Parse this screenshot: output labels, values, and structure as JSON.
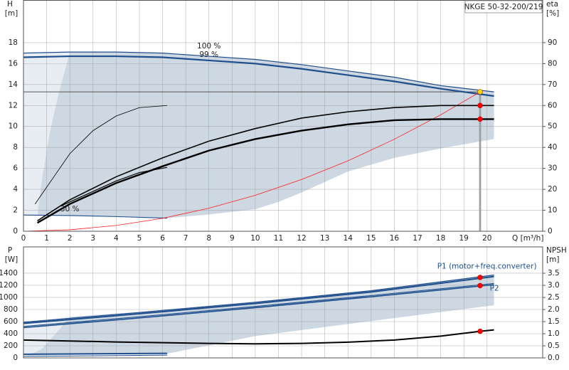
{
  "chart_data": [
    {
      "type": "line",
      "title": "NKGE 50-32-200/219",
      "y_label": "H",
      "y_unit": "[m]",
      "y2_label": "eta",
      "y2_unit": "[%]",
      "x_label": "Q [m³/h]",
      "xlim": [
        0,
        22.4
      ],
      "xticks": [
        0,
        1,
        2,
        3,
        4,
        5,
        6,
        7,
        8,
        9,
        10,
        11,
        12,
        13,
        14,
        15,
        16,
        17,
        18,
        19,
        20
      ],
      "ylim": [
        0,
        22
      ],
      "yticks": [
        0,
        2,
        4,
        6,
        8,
        10,
        12,
        14,
        16,
        18
      ],
      "y2lim": [
        0,
        110
      ],
      "y2ticks": [
        0,
        10,
        20,
        30,
        40,
        50,
        60,
        70,
        80,
        90
      ],
      "grid": true,
      "regions": [
        {
          "color": "#e7edf3",
          "x": [
            0,
            0,
            2,
            1.5,
            1.1,
            0.8,
            0.6
          ],
          "values": [
            1.55,
            17.0,
            17.1,
            13,
            9,
            5,
            1.5
          ]
        },
        {
          "color": "#cdd8e3",
          "x": [
            0.6,
            0.8,
            1.1,
            1.5,
            2,
            4,
            6,
            8,
            10,
            12,
            14,
            16,
            18,
            20.3,
            20.3,
            18,
            16,
            14,
            12,
            11,
            10,
            8,
            6.2,
            4,
            2,
            0.6
          ],
          "values": [
            1.5,
            5,
            9,
            13,
            17.1,
            17.1,
            17.0,
            16.7,
            16.4,
            15.9,
            15.3,
            14.7,
            13.9,
            13.3,
            8.8,
            7.9,
            7.0,
            5.7,
            3.7,
            2.8,
            2.1,
            1.6,
            1.25,
            1.4,
            1.5,
            1.5
          ]
        }
      ],
      "series": [
        {
          "name": "100 %",
          "color": "#1f4e8c",
          "width": 1.2,
          "x": [
            0,
            2,
            4,
            6,
            8,
            10,
            12,
            14,
            16,
            18,
            20.3
          ],
          "values": [
            17.0,
            17.1,
            17.1,
            17.0,
            16.7,
            16.4,
            15.9,
            15.3,
            14.7,
            13.9,
            13.3
          ]
        },
        {
          "name": "99 %",
          "color": "#1f4e8c",
          "width": 2.2,
          "x": [
            0,
            2,
            4,
            6,
            8,
            10,
            12,
            14,
            16,
            18,
            20.3
          ],
          "values": [
            16.6,
            16.7,
            16.7,
            16.6,
            16.3,
            16.0,
            15.5,
            14.9,
            14.3,
            13.6,
            12.9
          ]
        },
        {
          "name": "30 %",
          "color": "#1f4e8c",
          "width": 1.1,
          "x": [
            0,
            2,
            4,
            6.2
          ],
          "values": [
            1.55,
            1.5,
            1.4,
            1.25
          ]
        },
        {
          "color": "#ff2020",
          "width": 0.8,
          "x": [
            0,
            2,
            4,
            6,
            8,
            10,
            12,
            14,
            16,
            18,
            19.7
          ],
          "values": [
            0,
            0.14,
            0.55,
            1.23,
            2.2,
            3.43,
            4.94,
            6.72,
            8.78,
            11.11,
            13.3
          ]
        },
        {
          "color": "#000000",
          "width": 1.6,
          "axis": "y2",
          "x": [
            0.6,
            2,
            4,
            6,
            8,
            10,
            12,
            14,
            16,
            18,
            20.3
          ],
          "values": [
            5,
            15,
            26,
            35,
            43,
            49,
            54,
            57,
            59,
            60,
            60
          ]
        },
        {
          "color": "#000000",
          "width": 2.4,
          "axis": "y2",
          "x": [
            0.6,
            2,
            4,
            6,
            8,
            10,
            12,
            14,
            16,
            18,
            20.3
          ],
          "values": [
            4,
            13,
            23,
            31,
            38.5,
            44,
            48,
            51,
            53,
            53.5,
            53.5
          ]
        },
        {
          "color": "#000000",
          "width": 0.8,
          "axis": "y2",
          "x": [
            0.5,
            1,
            2,
            3,
            4,
            5,
            6.2
          ],
          "values": [
            13,
            21,
            37,
            48,
            55,
            59,
            60
          ]
        },
        {
          "color": "#000000",
          "width": 1.2,
          "axis": "y2",
          "x": [
            1.6,
            3,
            4,
            5,
            6.2
          ],
          "values": [
            12,
            19,
            24,
            28,
            30.5
          ]
        }
      ],
      "points": [
        {
          "x": 19.7,
          "y": 13.3,
          "color": "#ffd700"
        },
        {
          "x": 19.7,
          "y": 60,
          "axis": "y2",
          "color": "#ff0000"
        },
        {
          "x": 19.7,
          "y": 53.5,
          "axis": "y2",
          "color": "#ff0000"
        }
      ]
    },
    {
      "type": "line",
      "y_label": "P",
      "y_unit": "[W]",
      "y2_label": "NPSH",
      "y2_unit": "[m]",
      "ylim": [
        0,
        1835
      ],
      "yticks": [
        0,
        200,
        400,
        600,
        800,
        1000,
        1200,
        1400
      ],
      "y2lim": [
        0,
        4.59
      ],
      "y2ticks": [
        {
          "value": 0,
          "label": "0.0"
        },
        0.5,
        {
          "value": 1,
          "label": "1.0"
        },
        1.5,
        {
          "value": 2,
          "label": "2.0"
        },
        2.5,
        {
          "value": 3,
          "label": "3.0"
        },
        3.5
      ],
      "grid": true,
      "regions": [
        {
          "color": "#e7edf3",
          "x": [
            0,
            0,
            2,
            1.5,
            0.8,
            0.2
          ],
          "values": [
            40,
            580,
            680,
            450,
            150,
            40
          ]
        },
        {
          "color": "#cdd8e3",
          "x": [
            0.2,
            0.8,
            1.5,
            2,
            5,
            10,
            15,
            20.3,
            20.3,
            14,
            10,
            6.2,
            4,
            2,
            0.2
          ],
          "values": [
            40,
            150,
            450,
            680,
            760,
            930,
            1120,
            1380,
            870,
            560,
            360,
            70,
            60,
            50,
            40
          ]
        }
      ],
      "series": [
        {
          "name": "P1 (motor+freq.converter)",
          "color": "#1f4e8c",
          "width": 1.2,
          "x": [
            0,
            5,
            10,
            15,
            20.3
          ],
          "values": [
            590,
            750,
            920,
            1110,
            1370
          ]
        },
        {
          "color": "#1f4e8c",
          "width": 2,
          "x": [
            0,
            5,
            10,
            15,
            20.3
          ],
          "values": [
            570,
            730,
            900,
            1090,
            1345
          ]
        },
        {
          "name": "P2",
          "color": "#1f4e8c",
          "width": 1.2,
          "x": [
            0,
            5,
            10,
            15,
            20.3
          ],
          "values": [
            520,
            680,
            850,
            1030,
            1230
          ]
        },
        {
          "color": "#1f4e8c",
          "width": 1.6,
          "x": [
            0,
            5,
            10,
            15,
            20.3
          ],
          "values": [
            500,
            660,
            830,
            1010,
            1210
          ]
        },
        {
          "color": "#1f4e8c",
          "width": 2,
          "x": [
            0,
            6.2
          ],
          "values": [
            60,
            75
          ]
        },
        {
          "color": "#1f4e8c",
          "width": 1,
          "x": [
            0,
            6.2
          ],
          "values": [
            25,
            45
          ]
        },
        {
          "color": "#000000",
          "width": 2,
          "axis": "y2",
          "x": [
            0,
            4,
            8,
            10,
            12,
            14,
            16,
            18,
            19.7,
            20.3
          ],
          "values": [
            0.74,
            0.66,
            0.6,
            0.58,
            0.6,
            0.65,
            0.74,
            0.9,
            1.1,
            1.16
          ]
        }
      ],
      "points": [
        {
          "x": 19.7,
          "y": 1330,
          "color": "#ff0000"
        },
        {
          "x": 19.7,
          "y": 1195,
          "color": "#ff0000"
        },
        {
          "x": 19.7,
          "y": 1.1,
          "axis": "y2",
          "color": "#ff0000"
        }
      ]
    }
  ]
}
